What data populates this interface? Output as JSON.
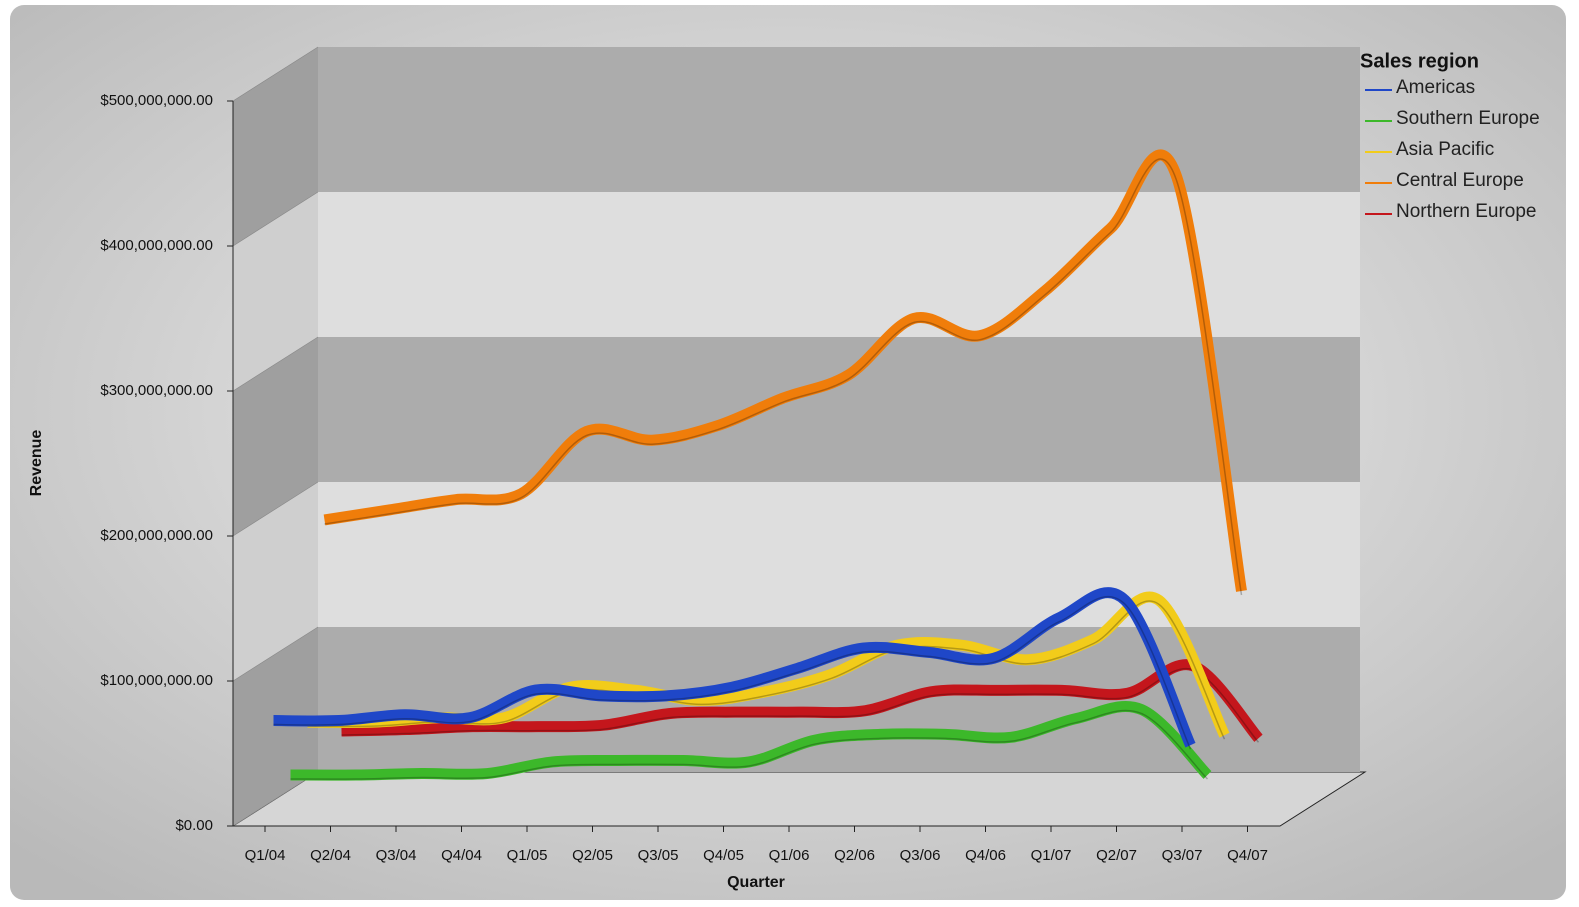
{
  "chart_data": {
    "type": "line3d",
    "x_label": "Quarter",
    "y_label": "Revenue",
    "legend_title": "Sales region",
    "legend": "top-right",
    "grid": true,
    "categories": [
      "Q1/04",
      "Q2/04",
      "Q3/04",
      "Q4/04",
      "Q1/05",
      "Q2/05",
      "Q3/05",
      "Q4/05",
      "Q1/06",
      "Q2/06",
      "Q3/06",
      "Q4/06",
      "Q1/07",
      "Q2/07",
      "Q3/07",
      "Q4/07"
    ],
    "ylim": [
      0,
      500000000
    ],
    "yticks": [
      {
        "value": 0,
        "label": "$0.00"
      },
      {
        "value": 100000000,
        "label": "$100,000,000.00"
      },
      {
        "value": 200000000,
        "label": "$200,000,000.00"
      },
      {
        "value": 300000000,
        "label": "$300,000,000.00"
      },
      {
        "value": 400000000,
        "label": "$400,000,000.00"
      },
      {
        "value": 500000000,
        "label": "$500,000,000.00"
      }
    ],
    "series": [
      {
        "name": "Americas",
        "color": "#1f47c8",
        "values": [
          69000000,
          69000000,
          73000000,
          71000000,
          90000000,
          86000000,
          86000000,
          92000000,
          105000000,
          119000000,
          116000000,
          112000000,
          140000000,
          152000000,
          52000000,
          null
        ]
      },
      {
        "name": "Southern Europe",
        "color": "#3cb82a",
        "values": [
          24000000,
          24000000,
          25000000,
          25000000,
          33000000,
          34000000,
          34000000,
          33000000,
          48000000,
          52000000,
          52000000,
          50000000,
          63000000,
          69000000,
          24000000,
          null
        ]
      },
      {
        "name": "Asia Pacific",
        "color": "#f2cc1a",
        "values": [
          53000000,
          53000000,
          56000000,
          56000000,
          77000000,
          75000000,
          68000000,
          74000000,
          86000000,
          106000000,
          106000000,
          96000000,
          110000000,
          137000000,
          44000000,
          null
        ]
      },
      {
        "name": "Central Europe",
        "color": "#f07d0a",
        "values": [
          185000000,
          192000000,
          199000000,
          203000000,
          246000000,
          240000000,
          250000000,
          269000000,
          285000000,
          324000000,
          312000000,
          343000000,
          386000000,
          423000000,
          136000000,
          null
        ]
      },
      {
        "name": "Northern Europe",
        "color": "#c4161c",
        "values": [
          32000000,
          33000000,
          35000000,
          35000000,
          36000000,
          44000000,
          45000000,
          45000000,
          46000000,
          59000000,
          60000000,
          60000000,
          58000000,
          77000000,
          27000000,
          null
        ]
      }
    ]
  }
}
